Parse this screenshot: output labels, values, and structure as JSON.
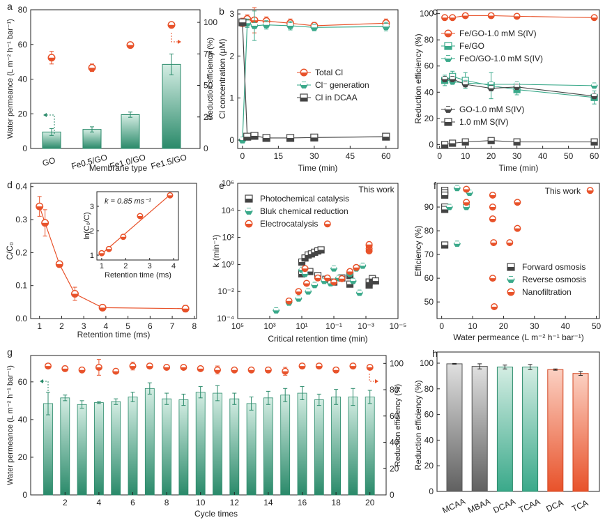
{
  "panel_letters": [
    "a",
    "b",
    "c",
    "d",
    "e",
    "f",
    "g",
    "h"
  ],
  "inset_k_label": "k = 0.85 ms⁻¹",
  "annotations": {
    "this_work_e": "This work",
    "this_work_f": "This work"
  },
  "colors": {
    "orange": "#e8522a",
    "green": "#3aa98a",
    "dark": "#444444",
    "gray": "#707070"
  },
  "chart_data": [
    {
      "panel": "a",
      "type": "bar",
      "categories": [
        "GO",
        "Fe0.5/GO",
        "Fe1.0/GO",
        "Fe1.5/GO"
      ],
      "series": [
        {
          "name": "Water permeance",
          "axis": "left",
          "values": [
            9.5,
            11.0,
            19.5,
            48.5
          ],
          "errors": [
            2.0,
            1.5,
            1.5,
            6.0
          ]
        },
        {
          "name": "Reduction efficiency",
          "axis": "right",
          "values": [
            72,
            64,
            82,
            98
          ],
          "errors": [
            5,
            3,
            1,
            1
          ]
        }
      ],
      "xlabel": "Membrane type",
      "ylabel": "Water permeance (L m⁻² h⁻¹ bar⁻¹)",
      "y2label": "Reduction efficiency (%)",
      "ylim": [
        0,
        80
      ],
      "y2lim": [
        0,
        110
      ],
      "yticks": [
        "0",
        "20",
        "40",
        "60",
        "80"
      ],
      "y2ticks": [
        "0",
        "25",
        "50",
        "75",
        "100"
      ]
    },
    {
      "panel": "b",
      "type": "line",
      "x": [
        0,
        2,
        5,
        10,
        20,
        30,
        60
      ],
      "series": [
        {
          "name": "Total Cl",
          "values": [
            2.8,
            2.88,
            2.85,
            2.83,
            2.78,
            2.72,
            2.78
          ],
          "errors": [
            0.1,
            0.1,
            0.3,
            0.1,
            0.1,
            0.08,
            0.1
          ]
        },
        {
          "name": "Cl⁻ generation",
          "values": [
            0,
            2.78,
            2.72,
            2.74,
            2.72,
            2.68,
            2.7
          ],
          "errors": [
            0,
            0.1,
            0.35,
            0.1,
            0.1,
            0.08,
            0.1
          ]
        },
        {
          "name": "Cl in DCAA",
          "values": [
            2.8,
            0.08,
            0.1,
            0.05,
            0.05,
            0.06,
            0.08
          ],
          "errors": [
            0,
            0.02,
            0.02,
            0.02,
            0.02,
            0.02,
            0.02
          ]
        }
      ],
      "xlabel": "Time (min)",
      "ylabel": "Cl concentration (μM)",
      "xlim": [
        -2,
        65
      ],
      "ylim": [
        -0.2,
        3.1
      ],
      "xticks": [
        "0",
        "15",
        "30",
        "45",
        "60"
      ],
      "yticks": [
        "0",
        "1",
        "2",
        "3"
      ]
    },
    {
      "panel": "c",
      "type": "line",
      "x": [
        2,
        5,
        10,
        20,
        30,
        60
      ],
      "series": [
        {
          "name": "Fe/GO-1.0 mM S(IV)",
          "values": [
            97,
            97,
            98.5,
            98.5,
            98,
            97
          ]
        },
        {
          "name": "Fe/GO",
          "values": [
            49,
            52,
            49,
            45,
            42,
            36
          ],
          "errors": [
            4,
            4,
            6,
            10,
            4,
            5
          ]
        },
        {
          "name": "FeO/GO-1.0 mM S(IV)",
          "values": [
            50,
            48,
            47,
            46,
            46,
            45
          ]
        },
        {
          "name": "GO-1.0 mM S(IV)",
          "values": [
            50,
            50,
            46,
            43,
            44,
            37
          ]
        },
        {
          "name": "1.0 mM S(IV)",
          "values": [
            0,
            1,
            2,
            3,
            2,
            2
          ]
        }
      ],
      "xlabel": "Time (min)",
      "ylabel": "Reduction efficiency (%)",
      "ylim": [
        -3,
        103
      ],
      "xlim": [
        -1,
        62
      ],
      "xticks": [
        "0",
        "10",
        "20",
        "30",
        "40",
        "50",
        "60"
      ],
      "yticks": [
        "0",
        "20",
        "40",
        "60",
        "80",
        "100"
      ]
    },
    {
      "panel": "d",
      "type": "line",
      "x": [
        1.0,
        1.25,
        1.9,
        2.6,
        3.85,
        7.6
      ],
      "values": [
        0.34,
        0.29,
        0.165,
        0.075,
        0.033,
        0.03
      ],
      "errors": [
        0.03,
        0.04,
        0.005,
        0.02,
        0.005,
        0.01
      ],
      "xlabel": "Retention time (ms)",
      "ylabel": "C/C₀",
      "xlim": [
        0.6,
        8.1
      ],
      "ylim": [
        0,
        0.41
      ],
      "xticks": [
        "1",
        "2",
        "3",
        "4",
        "5",
        "6",
        "7",
        "8"
      ],
      "yticks": [
        "0.0",
        "0.1",
        "0.2",
        "0.3",
        "0.4"
      ],
      "inset": {
        "x": [
          1.0,
          1.3,
          1.9,
          2.6,
          3.85
        ],
        "values": [
          1.08,
          1.25,
          1.75,
          2.6,
          3.45
        ],
        "k": 0.85,
        "xlabel": "Retention time (ms)",
        "ylabel": "ln(C₀/C)",
        "xticks": [
          "1",
          "2",
          "3",
          "4"
        ],
        "yticks": [
          "1",
          "2",
          "3"
        ]
      }
    },
    {
      "panel": "e",
      "type": "scatter",
      "series": [
        {
          "name": "Photochemical catalysis",
          "points": [
            [
              4,
              0.2
            ],
            [
              4.5,
              0.3
            ],
            [
              5,
              0.15
            ],
            [
              5.5,
              0.08
            ],
            [
              6,
              0.05
            ],
            [
              7,
              0.035
            ],
            [
              4,
              1.5
            ],
            [
              4.2,
              3
            ],
            [
              4.4,
              5
            ],
            [
              4.6,
              6
            ],
            [
              4.8,
              8
            ],
            [
              5,
              10
            ],
            [
              5.2,
              12
            ],
            [
              6.5,
              0.1
            ],
            [
              7,
              0.15
            ],
            [
              8.2,
              0.03
            ],
            [
              8.2,
              0.05
            ],
            [
              8.4,
              0.09
            ],
            [
              8.6,
              0.06
            ]
          ]
        },
        {
          "name": "Bluk chemical reduction",
          "points": [
            [
              2.4,
              0.0004
            ],
            [
              3.2,
              0.0015
            ],
            [
              3.8,
              0.003
            ],
            [
              4.4,
              0.01
            ],
            [
              4.8,
              0.03
            ],
            [
              5.4,
              0.06
            ],
            [
              5.8,
              0.04
            ],
            [
              6.3,
              0.1
            ],
            [
              7,
              0.2
            ],
            [
              7.4,
              0.5
            ],
            [
              7.8,
              0.8
            ],
            [
              6,
              0.5
            ],
            [
              7.2,
              0.06
            ],
            [
              7.6,
              0.008
            ],
            [
              4,
              0.4
            ],
            [
              4.2,
              0.2
            ]
          ]
        },
        {
          "name": "Electrocatalysis",
          "points": [
            [
              3.2,
              0.002
            ],
            [
              3.8,
              0.01
            ],
            [
              4.3,
              0.04
            ],
            [
              5,
              0.1
            ],
            [
              5.6,
              0.1
            ],
            [
              6,
              0.05
            ],
            [
              6.5,
              0.09
            ],
            [
              7,
              0.3
            ],
            [
              7.4,
              0.6
            ],
            [
              4.2,
              0.5
            ],
            [
              8.2,
              10
            ],
            [
              8.2,
              15
            ],
            [
              8.2,
              25
            ],
            [
              8.2,
              30
            ],
            [
              5.6,
              1000
            ]
          ]
        }
      ],
      "xlabel": "Critical retention time (min)",
      "ylabel": "k (min⁻¹)",
      "xlim_exp": [
        5,
        -5
      ],
      "ylim_exp": [
        -4,
        6
      ],
      "xticks": [
        "10⁵",
        "10³",
        "10¹",
        "10⁻¹",
        "10⁻³",
        "10⁻⁵"
      ],
      "yticks": [
        "10⁻⁴",
        "10⁻²",
        "10⁰",
        "10²",
        "10⁴",
        "10⁶"
      ]
    },
    {
      "panel": "f",
      "type": "scatter",
      "series": [
        {
          "name": "Forward osmosis",
          "points": [
            [
              1,
              97
            ],
            [
              1,
              96
            ],
            [
              1,
              95
            ],
            [
              1,
              90
            ],
            [
              1,
              89
            ],
            [
              1,
              74
            ]
          ]
        },
        {
          "name": "Reverse osmosis",
          "points": [
            [
              2.5,
              90
            ],
            [
              5,
              98
            ],
            [
              5,
              74.5
            ],
            [
              8,
              91
            ],
            [
              8,
              90
            ],
            [
              9,
              96
            ]
          ]
        },
        {
          "name": "Nanofiltration",
          "points": [
            [
              8,
              97.5
            ],
            [
              8,
              92
            ],
            [
              16.5,
              95
            ],
            [
              16.5,
              90
            ],
            [
              16.5,
              85
            ],
            [
              16.8,
              75
            ],
            [
              16.5,
              60
            ],
            [
              17,
              48
            ],
            [
              22,
              75
            ],
            [
              24.5,
              92
            ],
            [
              24.5,
              81
            ],
            [
              48,
              97
            ]
          ]
        }
      ],
      "xlabel": "Water permeance (L m⁻² h⁻¹ bar⁻¹)",
      "ylabel": "Efficiency (%)",
      "xlim": [
        -1.5,
        51
      ],
      "ylim": [
        43,
        100
      ],
      "xticks": [
        "0",
        "10",
        "20",
        "30",
        "40",
        "50"
      ],
      "yticks": [
        "50",
        "60",
        "70",
        "80",
        "90"
      ]
    },
    {
      "panel": "g",
      "type": "bar",
      "categories": [
        "1",
        "2",
        "3",
        "4",
        "5",
        "6",
        "7",
        "8",
        "9",
        "10",
        "11",
        "12",
        "13",
        "14",
        "15",
        "16",
        "17",
        "18",
        "19",
        "20"
      ],
      "series": [
        {
          "name": "Water permeance",
          "axis": "left",
          "values": [
            48.5,
            51.5,
            48,
            49,
            49.5,
            52,
            56.5,
            51,
            50.5,
            54.5,
            54,
            51,
            48.5,
            51.5,
            53,
            54,
            50.5,
            52,
            52,
            52
          ],
          "errors": [
            6,
            1.5,
            2,
            0.5,
            1.5,
            2.5,
            3,
            3,
            3,
            3,
            4,
            3,
            3.5,
            3.5,
            3.5,
            3.5,
            3,
            4,
            4.5,
            3.5
          ]
        },
        {
          "name": "Reduction efficiency",
          "axis": "right",
          "values": [
            98,
            96,
            95,
            97,
            94,
            98,
            98,
            97,
            97,
            96,
            95,
            95,
            95,
            95,
            94,
            98,
            98,
            95,
            98,
            97
          ],
          "errors": [
            0,
            2,
            0,
            6,
            0,
            3,
            0,
            0,
            0,
            0,
            3,
            0,
            0,
            2,
            3,
            0,
            0,
            2,
            0,
            0
          ]
        }
      ],
      "xlabel": "Cycle times",
      "ylabel": "Water permeance (L m⁻² h⁻¹ bar⁻¹)",
      "y2label": "Reduction efficiency (%)",
      "ylim": [
        0,
        74
      ],
      "y2lim": [
        0,
        106
      ],
      "xticks": [
        "2",
        "4",
        "6",
        "8",
        "10",
        "12",
        "14",
        "16",
        "18",
        "20"
      ],
      "yticks": [
        "0",
        "20",
        "40",
        "60"
      ],
      "y2ticks": [
        "0",
        "20",
        "40",
        "60",
        "80",
        "100"
      ]
    },
    {
      "panel": "h",
      "type": "bar",
      "categories": [
        "MCAA",
        "MBAA",
        "DCAA",
        "TCAA",
        "DCA",
        "TCA"
      ],
      "values": [
        99.5,
        97.5,
        97,
        97,
        95,
        92
      ],
      "errors": [
        0.3,
        2,
        1.5,
        2,
        0.5,
        1.5
      ],
      "ylabel": "Reduction efficiency (%)",
      "ylim": [
        0,
        100
      ],
      "yticks": [
        "0",
        "20",
        "40",
        "60",
        "80",
        "100"
      ]
    }
  ]
}
